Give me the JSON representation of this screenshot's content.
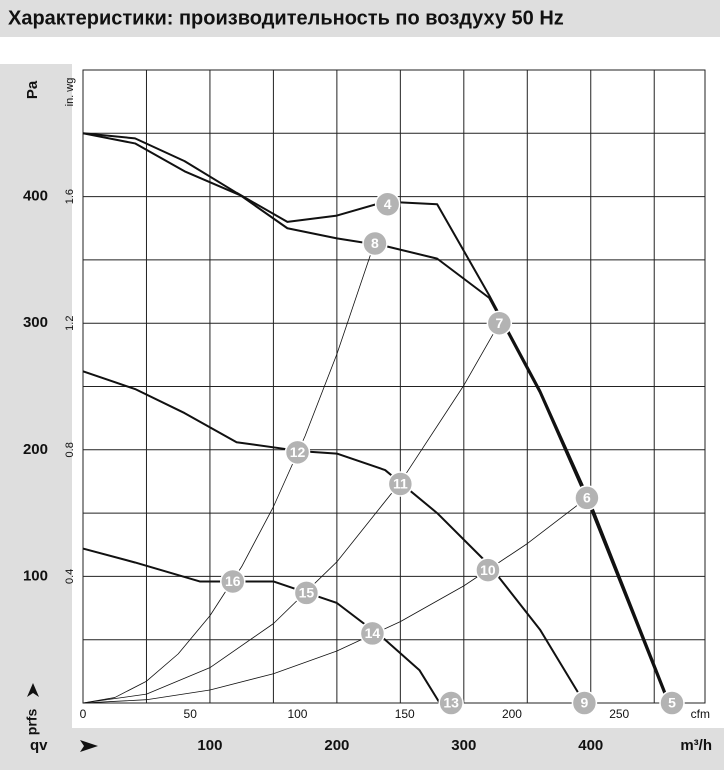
{
  "chart_data": {
    "type": "line",
    "title": "Характеристики: производительность по воздуху 50 Hz",
    "y_label": "Pa",
    "y2_label": "in. wg",
    "y_symbol": "prfs",
    "x_symbol": "qv",
    "x_label": "m³/h",
    "x2_label": "cfm",
    "xlim": [
      0,
      490
    ],
    "xticks": [
      100,
      200,
      300,
      400
    ],
    "x2lim": [
      0,
      290
    ],
    "x2ticks": [
      0,
      50,
      100,
      150,
      200,
      250
    ],
    "ylim": [
      0,
      500
    ],
    "yticks": [
      100,
      200,
      300,
      400
    ],
    "y2lim": [
      0,
      2
    ],
    "y2ticks": [
      0.4,
      0.8,
      1.2,
      1.6
    ],
    "xgrid": [
      50,
      100,
      150,
      200,
      250,
      300,
      350,
      400,
      450
    ],
    "ygrid": [
      50,
      100,
      150,
      200,
      250,
      300,
      350,
      400,
      450
    ],
    "series": [
      {
        "color": "#111111",
        "width": 2,
        "x": [
          0,
          41,
          80,
          121,
          161,
          200,
          238,
          279,
          320,
          360,
          399,
          462
        ],
        "values": [
          450,
          446,
          428,
          403,
          380,
          385,
          396,
          394,
          322,
          247,
          160,
          0
        ]
      },
      {
        "color": "#111111",
        "width": 2,
        "x": [
          0,
          41,
          80,
          124,
          161,
          200,
          238,
          279,
          320,
          360,
          399,
          461
        ],
        "values": [
          450,
          442,
          420,
          401,
          375,
          367,
          361,
          351,
          320,
          245,
          156,
          0
        ]
      },
      {
        "color": "#111111",
        "width": 2,
        "x": [
          0,
          41,
          80,
          121,
          171,
          200,
          238,
          279,
          320,
          360,
          395
        ],
        "values": [
          262,
          248,
          229,
          206,
          199,
          197,
          184,
          150,
          109,
          58,
          0
        ]
      },
      {
        "color": "#111111",
        "width": 2,
        "x": [
          0,
          41,
          92,
          150,
          200,
          238,
          265,
          281
        ],
        "values": [
          122,
          111,
          96,
          96,
          79,
          50,
          26,
          0
        ]
      },
      {
        "color": "#111111",
        "width": 0.8,
        "x": [
          0,
          25,
          50,
          75,
          100,
          125,
          150,
          175,
          200,
          230
        ],
        "values": [
          0,
          4.3,
          17.2,
          38.8,
          68.9,
          107.7,
          155,
          211,
          275.6,
          364.5
        ]
      },
      {
        "color": "#111111",
        "width": 0.8,
        "x": [
          0,
          50,
          100,
          150,
          200,
          250,
          300,
          328
        ],
        "values": [
          0,
          7.0,
          27.9,
          62.7,
          111.5,
          174.3,
          250.9,
          300
        ]
      },
      {
        "color": "#111111",
        "width": 0.8,
        "x": [
          0,
          50,
          100,
          150,
          200,
          250,
          300,
          350,
          397
        ],
        "values": [
          0,
          2.6,
          10.3,
          23.1,
          41.1,
          64.3,
          92.5,
          125.9,
          162
        ]
      }
    ],
    "points": [
      {
        "label": "4",
        "x": 240,
        "y": 394
      },
      {
        "label": "8",
        "x": 230,
        "y": 363
      },
      {
        "label": "7",
        "x": 328,
        "y": 300
      },
      {
        "label": "6",
        "x": 397,
        "y": 162
      },
      {
        "label": "5",
        "x": 464,
        "y": 0
      },
      {
        "label": "12",
        "x": 169,
        "y": 198
      },
      {
        "label": "11",
        "x": 250,
        "y": 173
      },
      {
        "label": "10",
        "x": 319,
        "y": 105
      },
      {
        "label": "9",
        "x": 395,
        "y": 0
      },
      {
        "label": "16",
        "x": 118,
        "y": 96
      },
      {
        "label": "15",
        "x": 176,
        "y": 87
      },
      {
        "label": "14",
        "x": 228,
        "y": 55
      },
      {
        "label": "13",
        "x": 290,
        "y": 0
      }
    ]
  }
}
